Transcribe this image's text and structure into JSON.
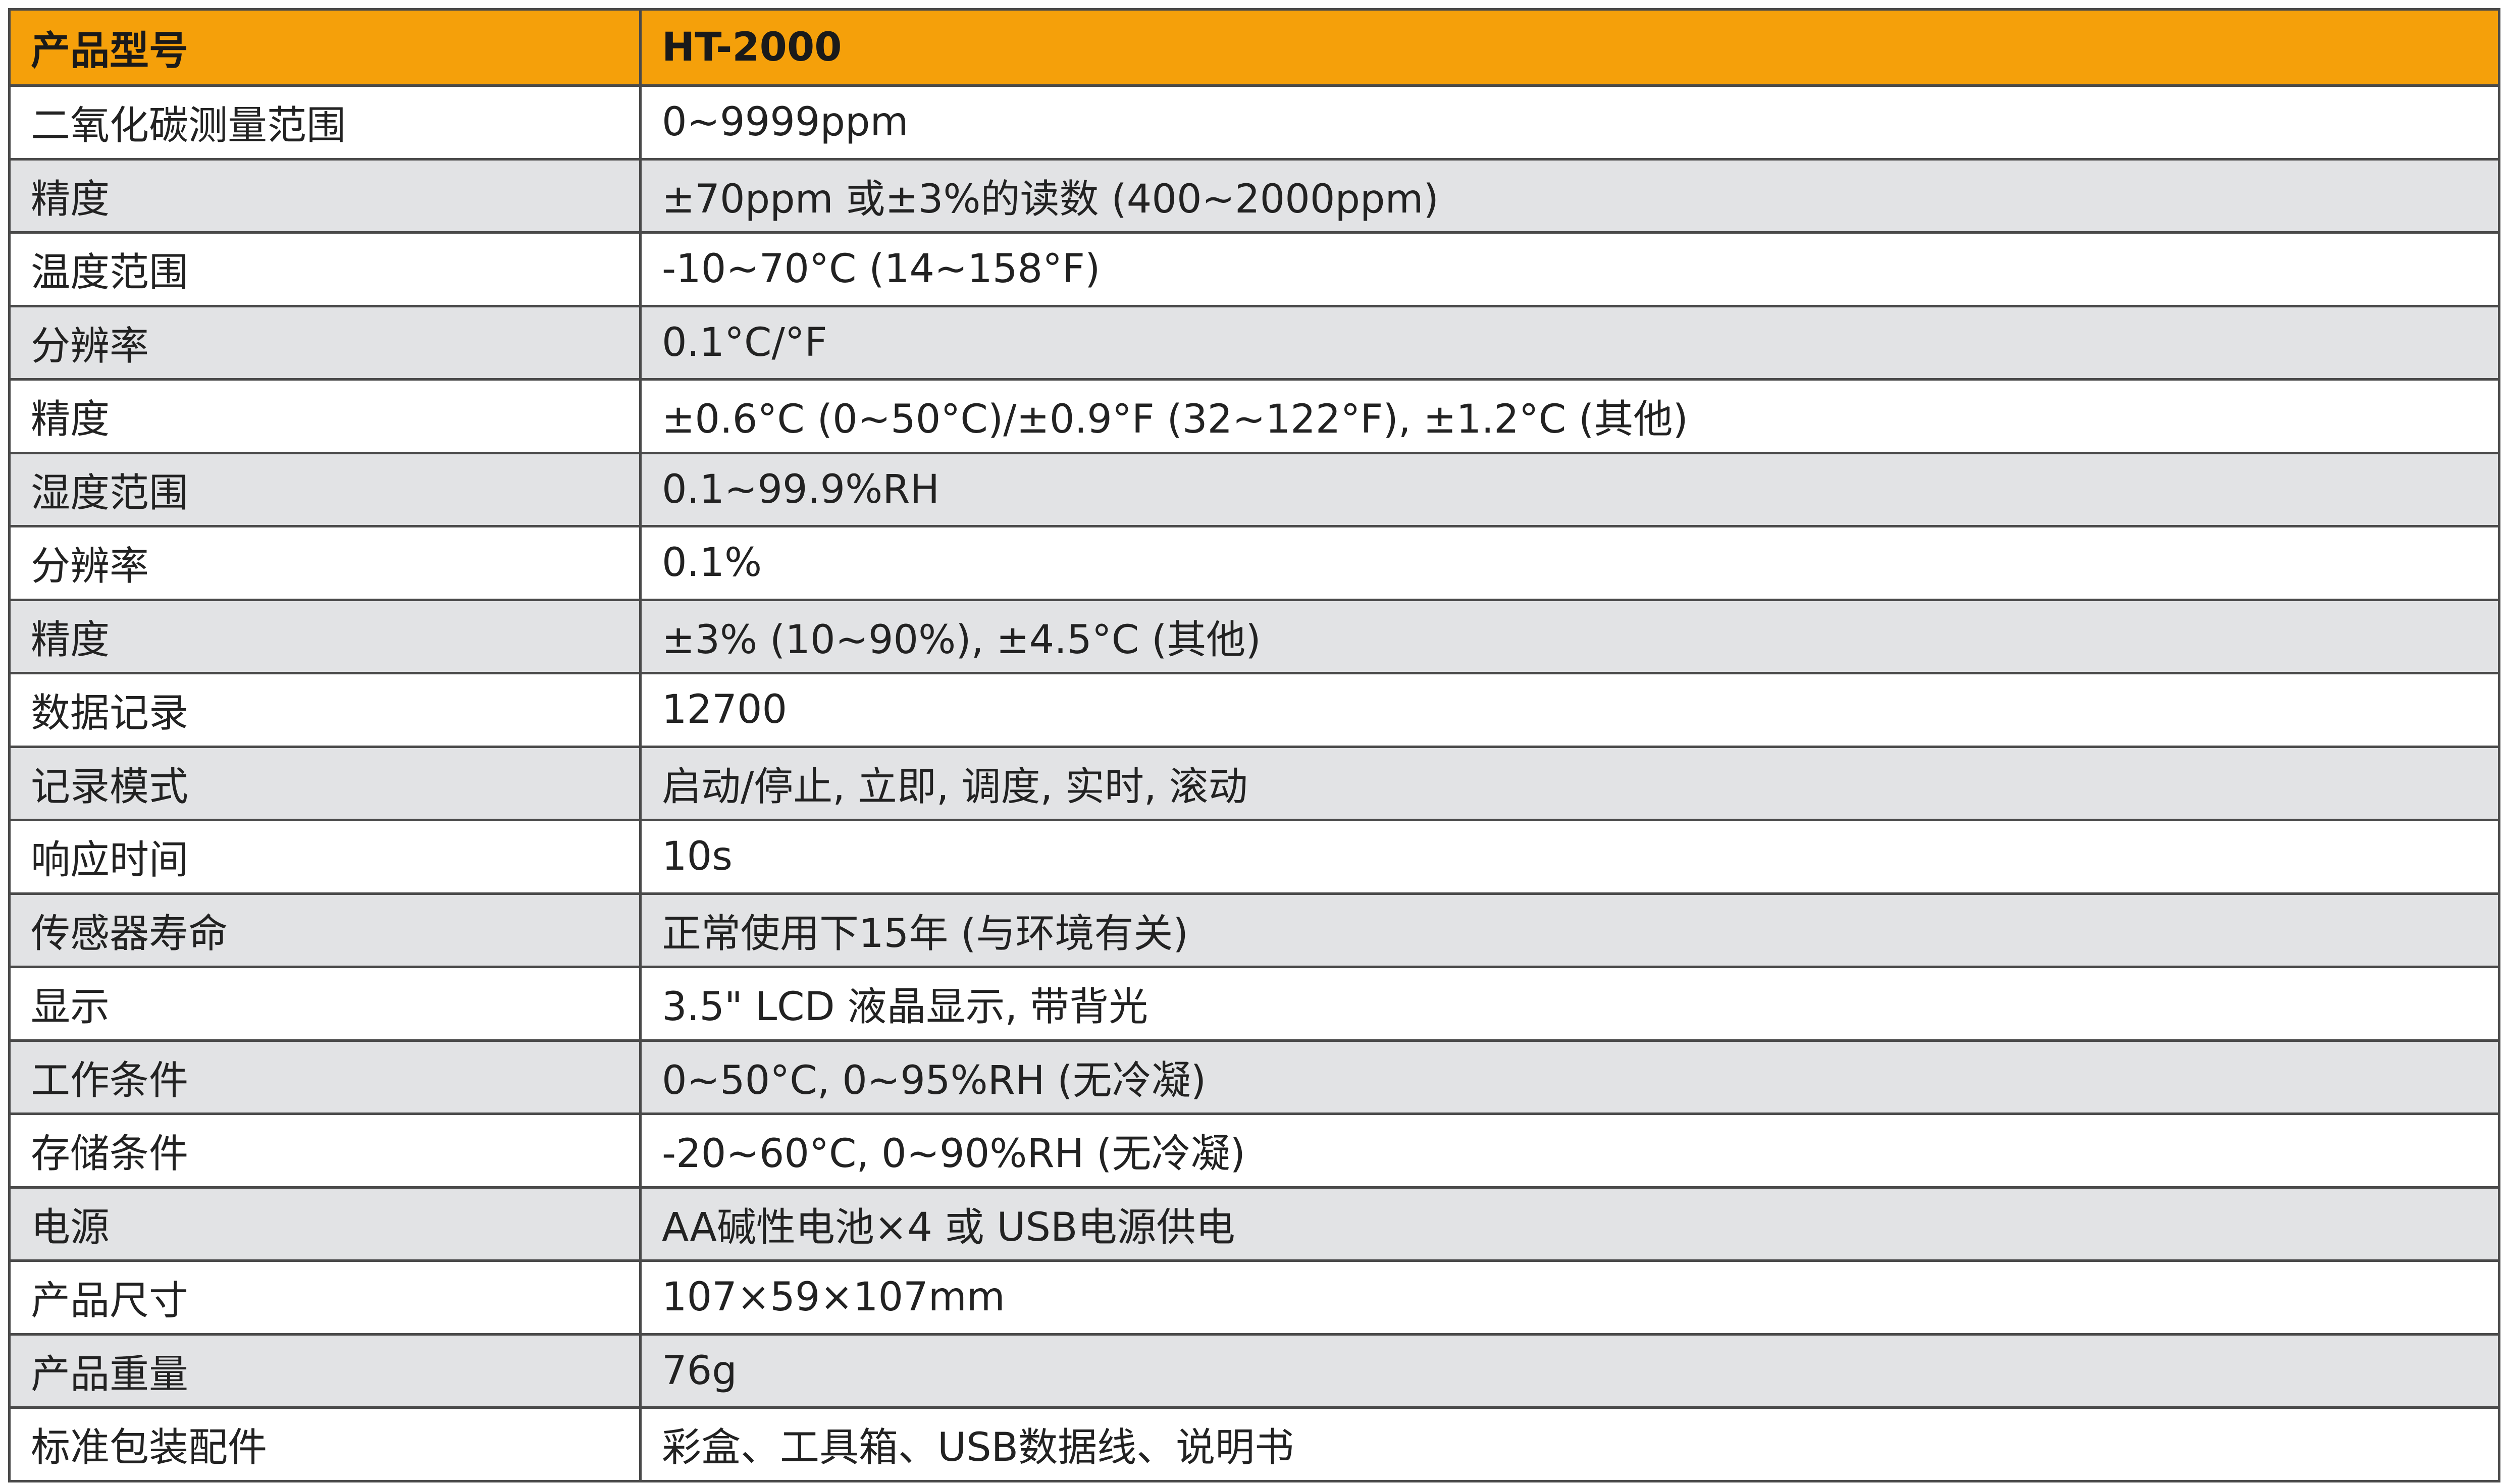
{
  "colors": {
    "header_background": "#F5A00A",
    "stripe_background": "#E2E3E5",
    "border": "#4A4A4A"
  },
  "header": {
    "label": "产品型号",
    "value": "HT-2000"
  },
  "rows": [
    {
      "label": "二氧化碳测量范围",
      "value": "0~9999ppm"
    },
    {
      "label": "精度",
      "value": "±70ppm 或±3%的读数 (400~2000ppm)"
    },
    {
      "label": "温度范围",
      "value": "-10~70°C (14~158°F)"
    },
    {
      "label": "分辨率",
      "value": "0.1°C/°F"
    },
    {
      "label": "精度",
      "value": "±0.6°C (0~50°C)/±0.9°F (32~122°F), ±1.2°C (其他)"
    },
    {
      "label": "湿度范围",
      "value": "0.1~99.9%RH"
    },
    {
      "label": "分辨率",
      "value": "0.1%"
    },
    {
      "label": "精度",
      "value": "±3% (10~90%), ±4.5°C (其他)"
    },
    {
      "label": "数据记录",
      "value": "12700"
    },
    {
      "label": "记录模式",
      "value": "启动/停止, 立即, 调度, 实时, 滚动"
    },
    {
      "label": "响应时间",
      "value": "10s"
    },
    {
      "label": "传感器寿命",
      "value": "正常使用下15年 (与环境有关)"
    },
    {
      "label": "显示",
      "value": "3.5\" LCD 液晶显示, 带背光"
    },
    {
      "label": "工作条件",
      "value": "0~50°C, 0~95%RH (无冷凝)"
    },
    {
      "label": "存储条件",
      "value": "-20~60°C, 0~90%RH (无冷凝)"
    },
    {
      "label": "电源",
      "value": "AA碱性电池×4 或 USB电源供电"
    },
    {
      "label": "产品尺寸",
      "value": "107×59×107mm"
    },
    {
      "label": "产品重量",
      "value": "76g"
    },
    {
      "label": "标准包装配件",
      "value": "彩盒、工具箱、USB数据线、说明书"
    }
  ]
}
